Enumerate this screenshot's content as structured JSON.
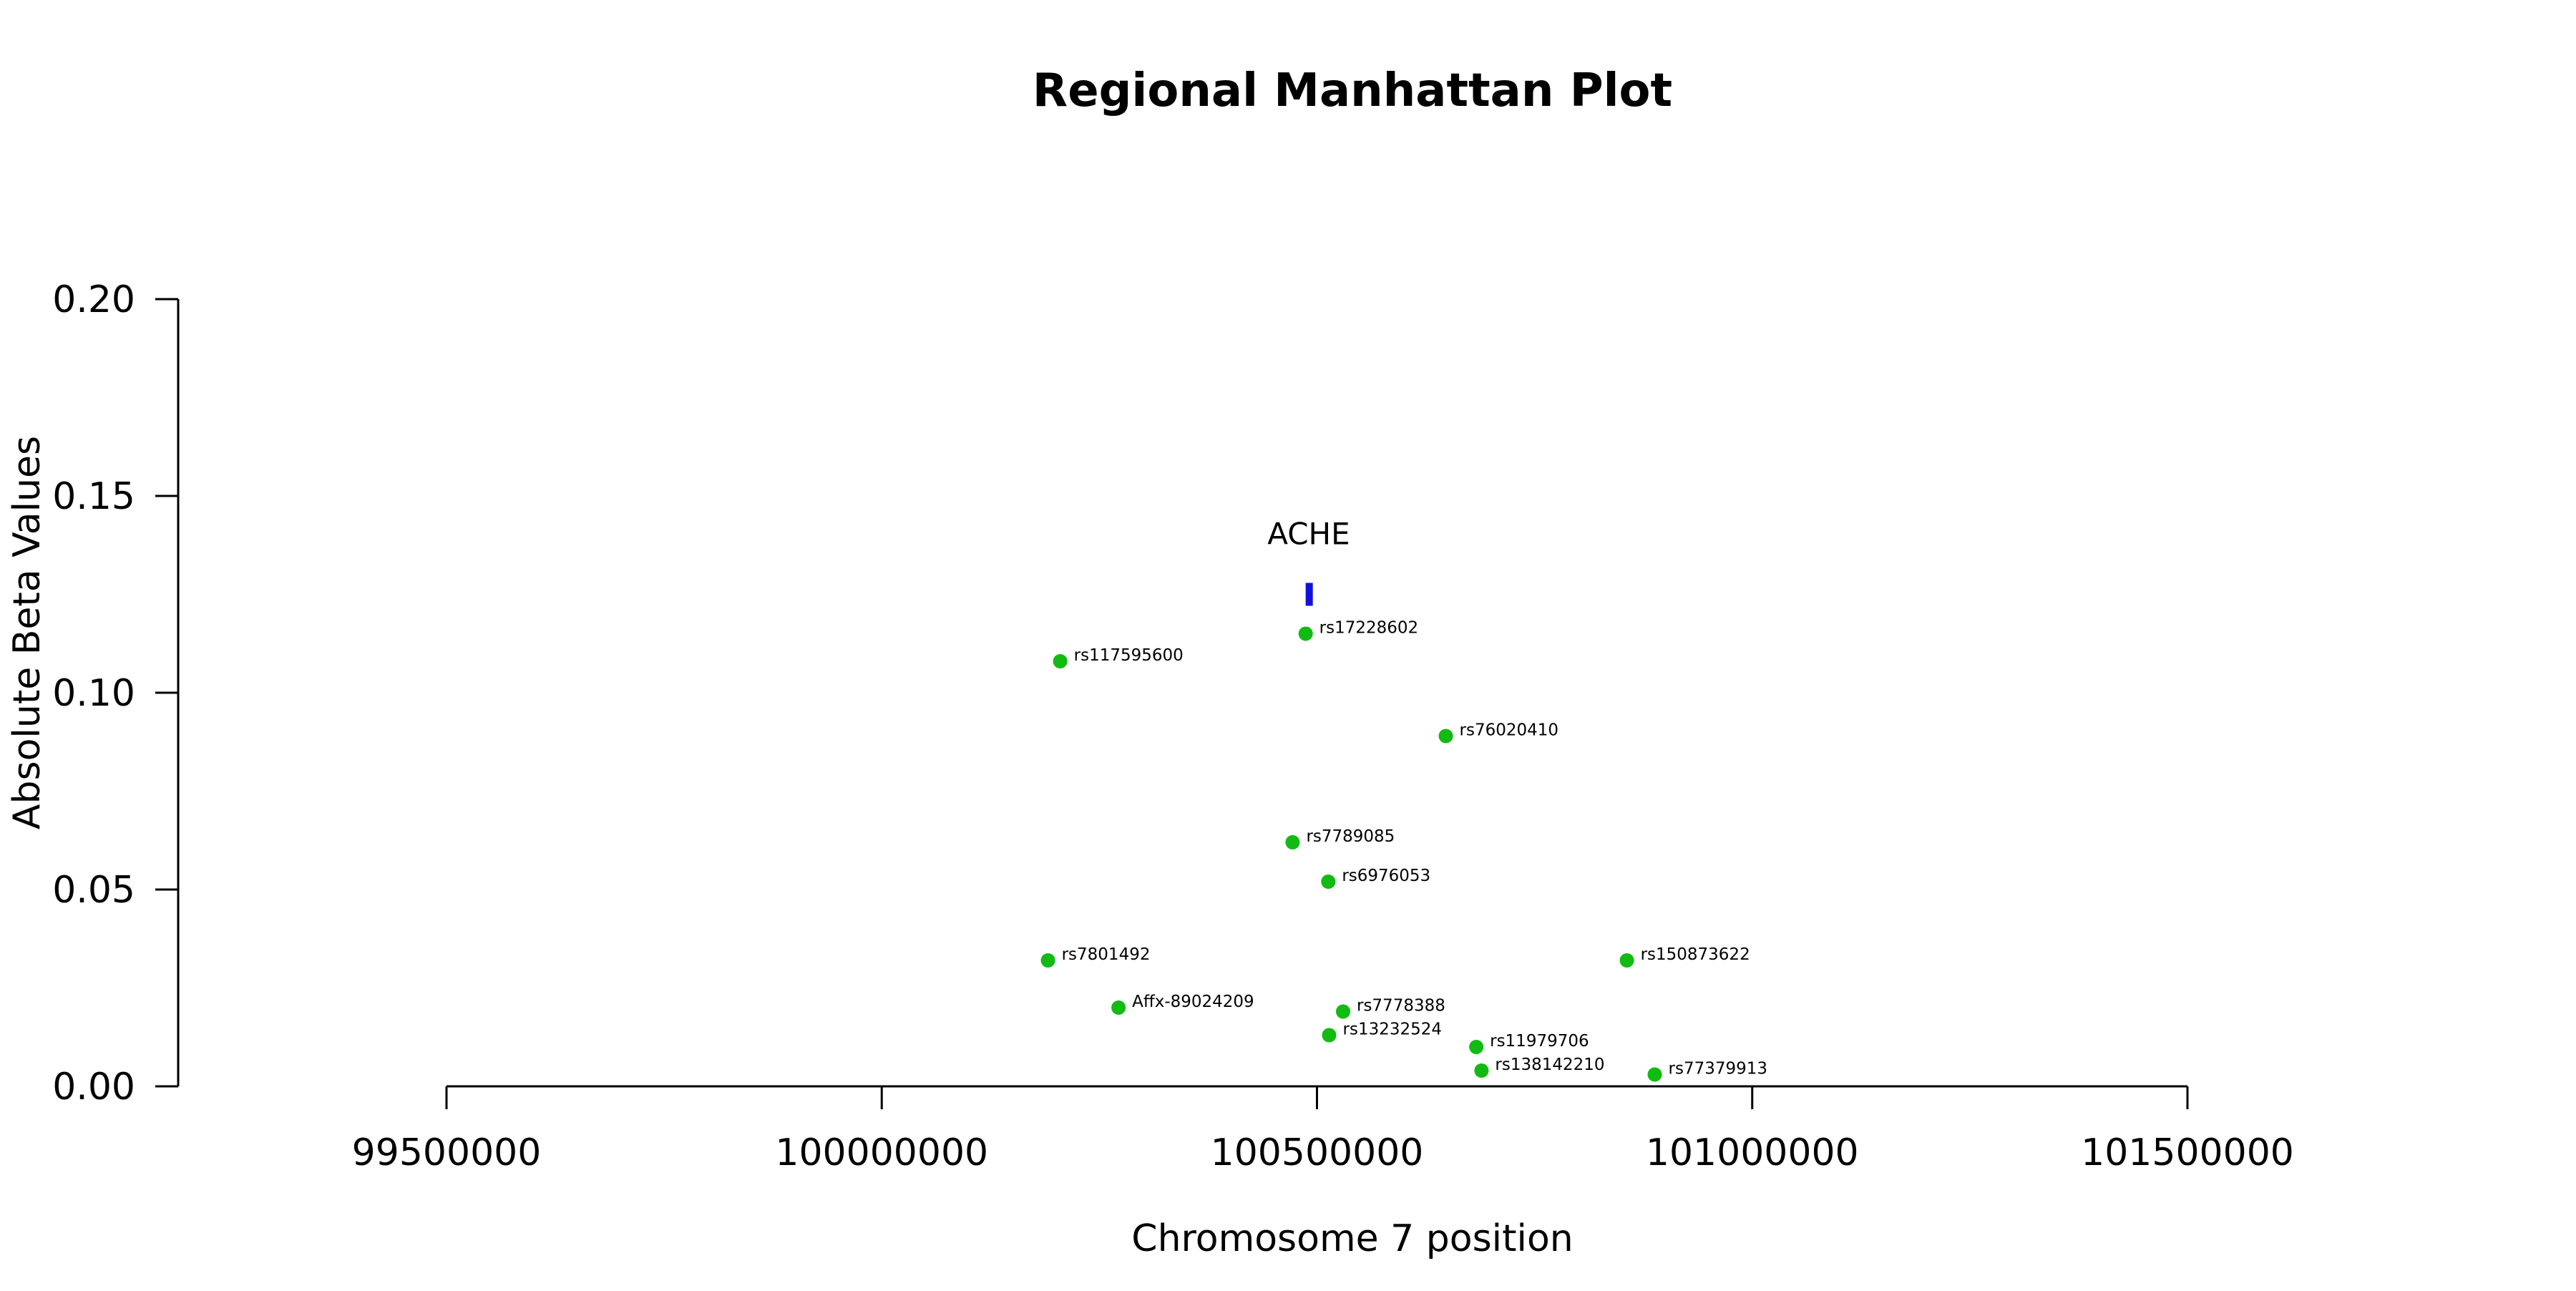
{
  "chart_data": {
    "type": "scatter",
    "title": "Regional Manhattan Plot",
    "xlabel": "Chromosome 7 position",
    "ylabel": "Absolute Beta Values",
    "xlim": [
      99500000,
      101500000
    ],
    "ylim": [
      0,
      0.2
    ],
    "x_ticks": [
      99500000,
      100000000,
      100500000,
      101000000,
      101500000
    ],
    "x_tick_labels": [
      "99500000",
      "100000000",
      "100500000",
      "101000000",
      "101500000"
    ],
    "y_ticks": [
      0,
      0.05,
      0.1,
      0.15,
      0.2
    ],
    "y_tick_labels": [
      "0.00",
      "0.05",
      "0.10",
      "0.15",
      "0.20"
    ],
    "grid": false,
    "point_color": "#11bb11",
    "gene_color": "#1111dd",
    "points": [
      {
        "label": "rs17228602",
        "x": 100487000,
        "y": 0.115
      },
      {
        "label": "rs117595600",
        "x": 100205000,
        "y": 0.108
      },
      {
        "label": "rs76020410",
        "x": 100648000,
        "y": 0.089
      },
      {
        "label": "rs7789085",
        "x": 100472000,
        "y": 0.062
      },
      {
        "label": "rs6976053",
        "x": 100513000,
        "y": 0.052
      },
      {
        "label": "rs7801492",
        "x": 100191000,
        "y": 0.032
      },
      {
        "label": "rs150873622",
        "x": 100856000,
        "y": 0.032
      },
      {
        "label": "Affx-89024209",
        "x": 100272000,
        "y": 0.02
      },
      {
        "label": "rs7778388",
        "x": 100530000,
        "y": 0.019
      },
      {
        "label": "rs13232524",
        "x": 100514000,
        "y": 0.013
      },
      {
        "label": "rs11979706",
        "x": 100683000,
        "y": 0.01
      },
      {
        "label": "rs138142210",
        "x": 100689000,
        "y": 0.004
      },
      {
        "label": "rs77379913",
        "x": 100888000,
        "y": 0.003
      }
    ],
    "genes": [
      {
        "name": "ACHE",
        "start": 100487000,
        "end": 100494000,
        "y": 0.125
      }
    ]
  }
}
